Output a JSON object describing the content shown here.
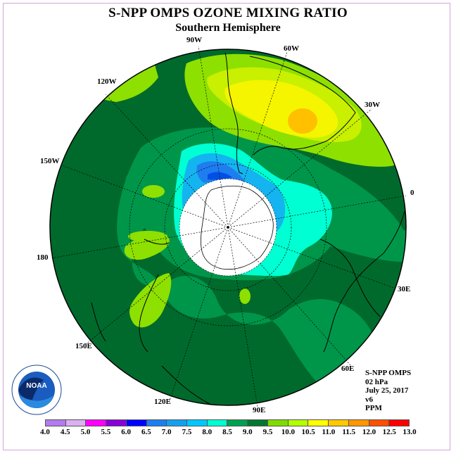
{
  "title": "S-NPP OMPS OZONE MIXING RATIO",
  "subtitle": "Southern Hemisphere",
  "longitude_labels": [
    {
      "text": "90W",
      "lon": -90
    },
    {
      "text": "60W",
      "lon": -60
    },
    {
      "text": "30W",
      "lon": -30
    },
    {
      "text": "0",
      "lon": 0
    },
    {
      "text": "30E",
      "lon": 30
    },
    {
      "text": "60E",
      "lon": 60
    },
    {
      "text": "90E",
      "lon": 90
    },
    {
      "text": "120E",
      "lon": 120
    },
    {
      "text": "150E",
      "lon": 150
    },
    {
      "text": "180",
      "lon": 180
    },
    {
      "text": "150W",
      "lon": -150
    },
    {
      "text": "120W",
      "lon": -120
    }
  ],
  "info": {
    "instrument": "S-NPP OMPS",
    "level": "02 hPa",
    "date": "July 25, 2017",
    "version": "v6",
    "units": "PPM"
  },
  "logo": {
    "text": "NOAA",
    "icon": "noaa-logo"
  },
  "legend": {
    "labels": [
      "4.0",
      "4.5",
      "5.0",
      "5.5",
      "6.0",
      "6.5",
      "7.0",
      "7.5",
      "8.0",
      "8.5",
      "9.0",
      "9.5",
      "10.0",
      "10.5",
      "11.0",
      "11.5",
      "12.0",
      "12.5",
      "13.0"
    ],
    "colors": [
      "#b27bef",
      "#dcb0f2",
      "#ff00ff",
      "#8a00d8",
      "#0000ff",
      "#1e7ef0",
      "#14a0f0",
      "#00c8ff",
      "#00ffd2",
      "#00a050",
      "#007830",
      "#7fdc00",
      "#b4ff00",
      "#ffff00",
      "#ffc800",
      "#ff9600",
      "#ff5000",
      "#ff0000",
      "#8c5030"
    ]
  }
}
